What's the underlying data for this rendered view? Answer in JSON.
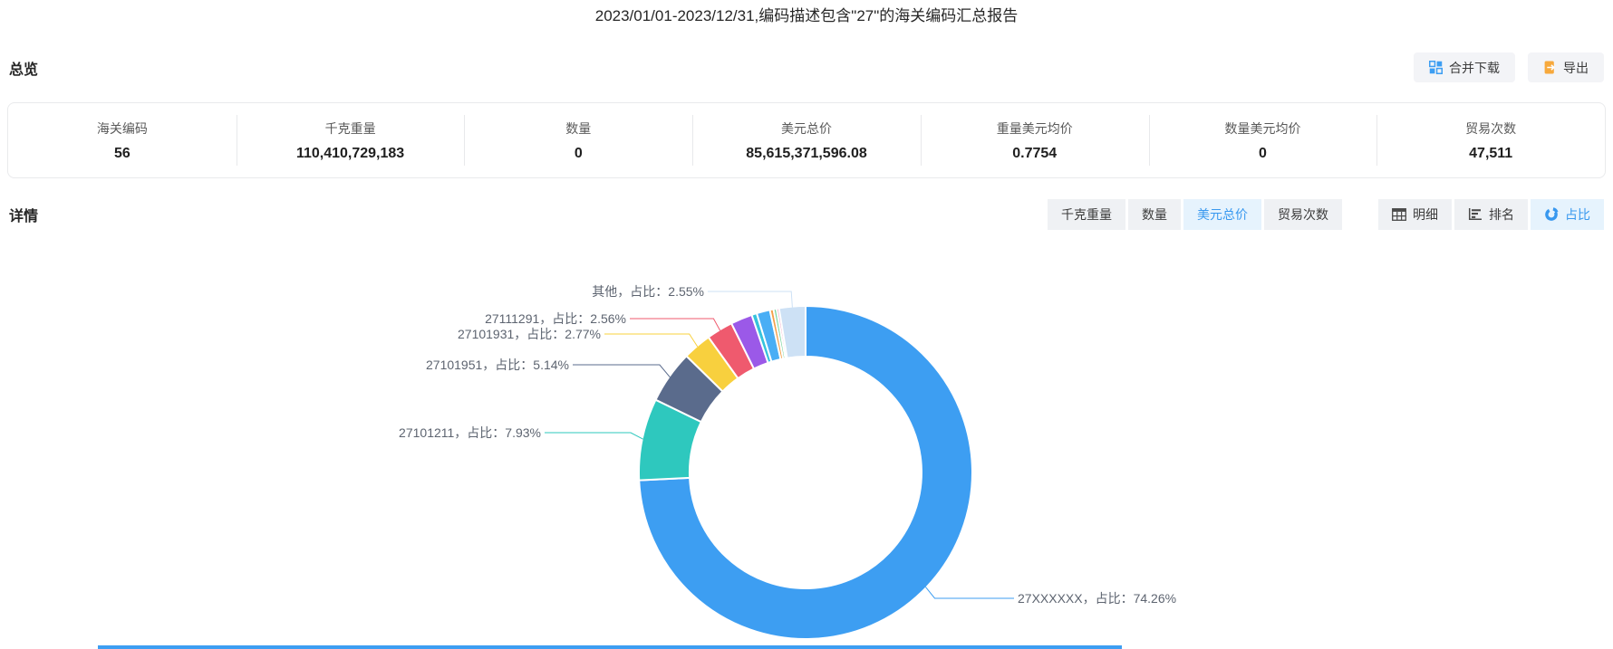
{
  "page": {
    "title": "2023/01/01-2023/12/31,编码描述包含\"27\"的海关编码汇总报告"
  },
  "overview": {
    "heading": "总览",
    "buttons": {
      "merge_download": "合并下载",
      "export": "导出"
    },
    "stats": [
      {
        "label": "海关编码",
        "value": "56"
      },
      {
        "label": "千克重量",
        "value": "110,410,729,183"
      },
      {
        "label": "数量",
        "value": "0"
      },
      {
        "label": "美元总价",
        "value": "85,615,371,596.08"
      },
      {
        "label": "重量美元均价",
        "value": "0.7754"
      },
      {
        "label": "数量美元均价",
        "value": "0"
      },
      {
        "label": "贸易次数",
        "value": "47,511"
      }
    ]
  },
  "detail": {
    "heading": "详情",
    "metric_tabs": [
      {
        "label": "千克重量",
        "active": false
      },
      {
        "label": "数量",
        "active": false
      },
      {
        "label": "美元总价",
        "active": true
      },
      {
        "label": "贸易次数",
        "active": false
      }
    ],
    "view_tabs": [
      {
        "label": "明细",
        "icon": "table-icon",
        "active": false
      },
      {
        "label": "排名",
        "icon": "ranking-icon",
        "active": false
      },
      {
        "label": "占比",
        "icon": "donut-icon",
        "active": true
      }
    ]
  },
  "colors": {
    "accent_blue": "#3898ef",
    "active_tab_bg": "#e6f3fd",
    "export_icon_orange": "#f7a93c"
  },
  "chart_data": {
    "type": "pie",
    "subtype": "donut",
    "title": "",
    "legend": "none",
    "label_format": "{name}，占比：{percent}%",
    "slices": [
      {
        "name": "27XXXXXX",
        "percent": 74.26,
        "color": "#3d9ef2",
        "labeled": true
      },
      {
        "name": "27101211",
        "percent": 7.93,
        "color": "#2ec8be",
        "labeled": true
      },
      {
        "name": "27101951",
        "percent": 5.14,
        "color": "#5a6b8c",
        "labeled": true
      },
      {
        "name": "27101931",
        "percent": 2.77,
        "color": "#f8d03e",
        "labeled": true
      },
      {
        "name": "27111291",
        "percent": 2.56,
        "color": "#ef5a6e",
        "labeled": true
      },
      {
        "name": "",
        "percent": 2.1,
        "color": "#9b59e8",
        "labeled": false
      },
      {
        "name": "",
        "percent": 0.5,
        "color": "#35c3dc",
        "labeled": false
      },
      {
        "name": "",
        "percent": 1.3,
        "color": "#49aef5",
        "labeled": false
      },
      {
        "name": "",
        "percent": 0.35,
        "color": "#f5a04a",
        "labeled": false
      },
      {
        "name": "",
        "percent": 0.3,
        "color": "#7ed6a0",
        "labeled": false
      },
      {
        "name": "",
        "percent": 0.24,
        "color": "#f2a2c0",
        "labeled": false
      },
      {
        "name": "其他",
        "percent": 2.55,
        "color": "#cde1f5",
        "labeled": true
      }
    ],
    "labels": [
      {
        "slice": 0,
        "text": "27XXXXXX，占比：74.26%"
      },
      {
        "slice": 1,
        "text": "27101211，占比：7.93%"
      },
      {
        "slice": 2,
        "text": "27101951，占比：5.14%"
      },
      {
        "slice": 3,
        "text": "27101931，占比：2.77%"
      },
      {
        "slice": 4,
        "text": "27111291，占比：2.56%"
      },
      {
        "slice": 11,
        "text": "其他，占比：2.55%"
      }
    ]
  }
}
